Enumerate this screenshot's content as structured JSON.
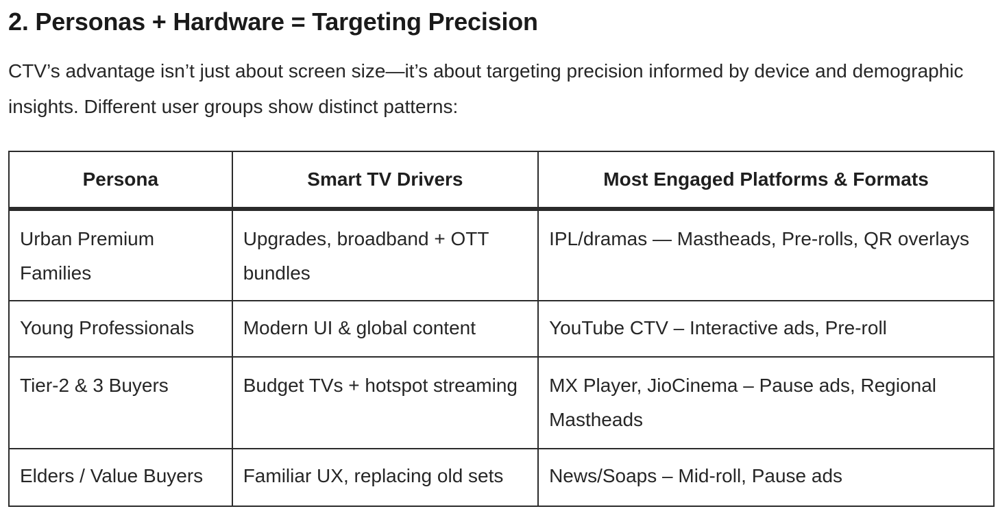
{
  "section": {
    "heading": "2. Personas + Hardware = Targeting Precision",
    "intro": "CTV’s advantage isn’t just about screen size—it’s about targeting precision informed by device and demographic insights. Different user groups show distinct patterns:"
  },
  "table": {
    "headers": [
      "Persona",
      "Smart TV Drivers",
      "Most Engaged Platforms & Formats"
    ],
    "rows": [
      {
        "persona": "Urban Premium Families",
        "drivers": "Upgrades, broadband + OTT bundles",
        "platforms": "IPL/dramas — Mastheads, Pre-rolls, QR overlays"
      },
      {
        "persona": "Young Professionals",
        "drivers": "Modern UI & global content",
        "platforms": "YouTube CTV – Interactive ads, Pre-roll"
      },
      {
        "persona": "Tier-2 & 3 Buyers",
        "drivers": "Budget TVs + hotspot streaming",
        "platforms": "MX Player, JioCinema – Pause ads, Regional Mastheads"
      },
      {
        "persona": "Elders / Value Buyers",
        "drivers": "Familiar UX, replacing old sets",
        "platforms": "News/Soaps – Mid-roll, Pause ads"
      }
    ]
  }
}
